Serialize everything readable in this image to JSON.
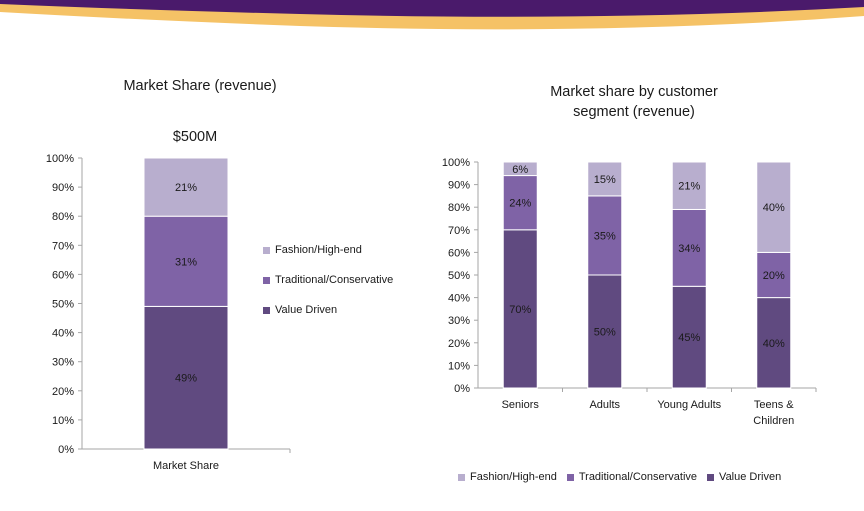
{
  "banner": {
    "colors": {
      "purple": "#4a1a6b",
      "gold": "#f5c266"
    }
  },
  "colors": {
    "fashion": "#b8aece",
    "traditional": "#7f63a6",
    "value": "#604a80",
    "axis": "#a6a6a6"
  },
  "chart_data": [
    {
      "type": "bar",
      "stacked": true,
      "title": "Market Share (revenue)",
      "subtitle": "$500M",
      "categories": [
        "Market Share"
      ],
      "series": [
        {
          "name": "Value Driven",
          "values": [
            49
          ]
        },
        {
          "name": "Traditional/Conservative",
          "values": [
            31
          ]
        },
        {
          "name": "Fashion/High-end",
          "values": [
            21
          ]
        }
      ],
      "data_labels": [
        [
          "49%"
        ],
        [
          "31%"
        ],
        [
          "21%"
        ]
      ],
      "y_ticks": [
        "0%",
        "10%",
        "20%",
        "30%",
        "40%",
        "50%",
        "60%",
        "70%",
        "80%",
        "90%",
        "100%"
      ],
      "ylim": [
        0,
        100
      ],
      "legend": {
        "position": "right",
        "items": [
          "Fashion/High-end",
          "Traditional/Conservative",
          "Value Driven"
        ]
      }
    },
    {
      "type": "bar",
      "stacked": true,
      "title_lines": [
        "Market share by customer",
        "segment (revenue)"
      ],
      "categories": [
        [
          "Seniors"
        ],
        [
          "Adults"
        ],
        [
          "Young Adults"
        ],
        [
          "Teens &",
          "Children"
        ]
      ],
      "series": [
        {
          "name": "Value Driven",
          "values": [
            70,
            50,
            45,
            40
          ]
        },
        {
          "name": "Traditional/Conservative",
          "values": [
            24,
            35,
            34,
            20
          ]
        },
        {
          "name": "Fashion/High-end",
          "values": [
            6,
            15,
            21,
            40
          ]
        }
      ],
      "data_labels": [
        [
          "70%",
          "50%",
          "45%",
          "40%"
        ],
        [
          "24%",
          "35%",
          "34%",
          "20%"
        ],
        [
          "6%",
          "15%",
          "21%",
          "40%"
        ]
      ],
      "y_ticks": [
        "0%",
        "10%",
        "20%",
        "30%",
        "40%",
        "50%",
        "60%",
        "70%",
        "80%",
        "90%",
        "100%"
      ],
      "ylim": [
        0,
        100
      ],
      "legend": {
        "position": "bottom",
        "items": [
          "Fashion/High-end",
          "Traditional/Conservative",
          "Value Driven"
        ]
      }
    }
  ]
}
